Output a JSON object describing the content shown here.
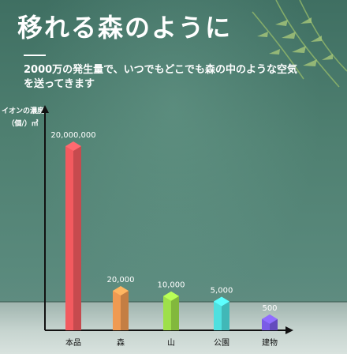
{
  "header": {
    "title": "移れる森のように",
    "subtitle": "2000万の発生量で、いつでもどこでも森の中のような空気を送ってきます"
  },
  "chart_data": {
    "type": "bar",
    "ylabel_lines": [
      "イオンの濃度",
      "（個/）㎥"
    ],
    "categories": [
      "本品",
      "森",
      "山",
      "公園",
      "建物"
    ],
    "values": [
      20000000,
      20000,
      10000,
      5000,
      500
    ],
    "data_labels": [
      "20,000,000",
      "20,000",
      "10,000",
      "5,000",
      "500"
    ],
    "colors": [
      "#f25a5f",
      "#ef9a52",
      "#9ee04a",
      "#4fe0df",
      "#7a5ce6"
    ],
    "scale": "broken (non-linear)"
  }
}
